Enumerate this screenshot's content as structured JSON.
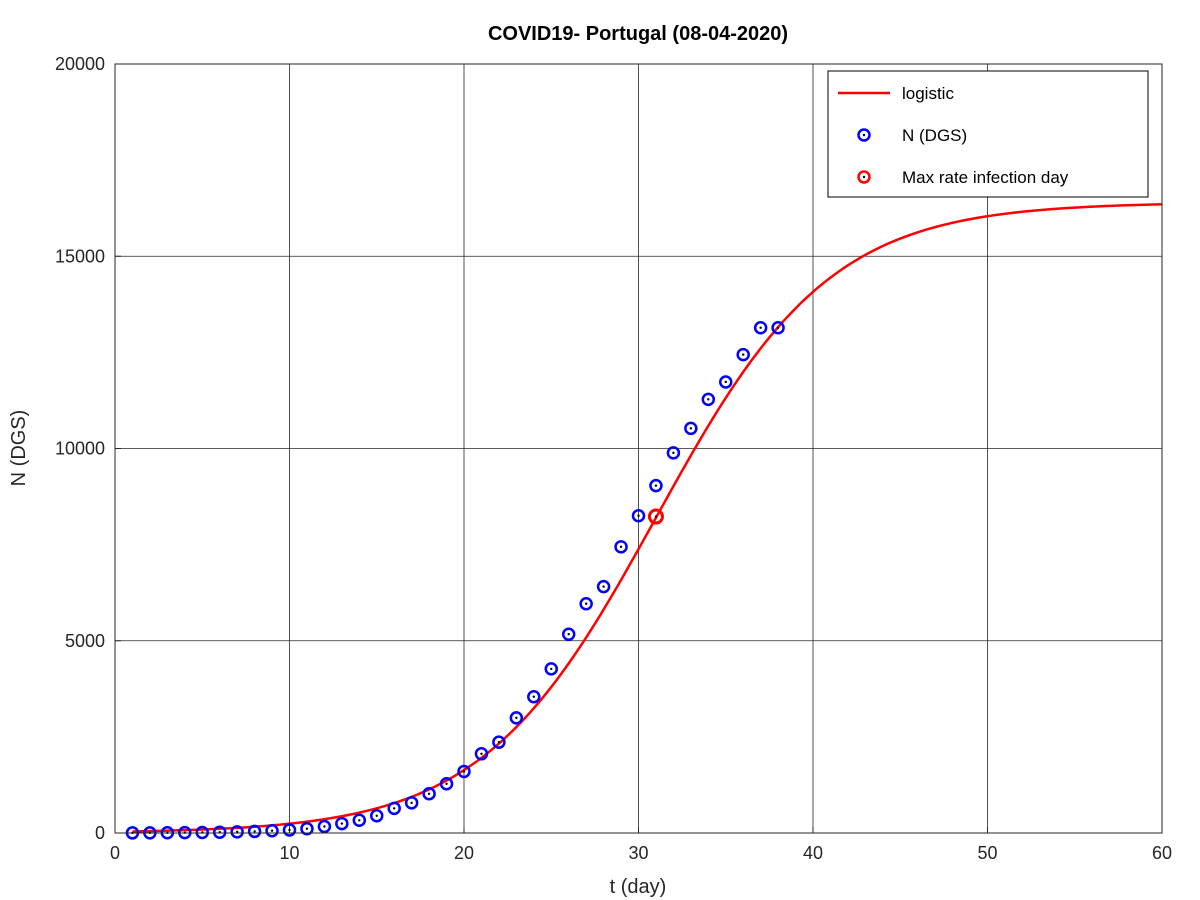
{
  "chart_data": {
    "type": "line",
    "title": "COVID19- Portugal (08-04-2020)",
    "xlabel": "t (day)",
    "ylabel": "N (DGS)",
    "xlim": [
      0,
      60
    ],
    "ylim": [
      0,
      20000
    ],
    "xticks": [
      0,
      10,
      20,
      30,
      40,
      50,
      60
    ],
    "yticks": [
      0,
      5000,
      10000,
      15000,
      20000
    ],
    "xtick_labels": [
      "0",
      "10",
      "20",
      "30",
      "40",
      "50",
      "60"
    ],
    "ytick_labels": [
      "0",
      "5000",
      "10000",
      "15000",
      "20000"
    ],
    "grid": true,
    "legend_position": "top-right",
    "series": [
      {
        "name": "logistic",
        "kind": "line",
        "color": "#ff0000",
        "model": {
          "K": 16400,
          "r": 0.2,
          "t0": 31,
          "t_start": 1,
          "t_end": 60
        }
      },
      {
        "name": "N (DGS)",
        "kind": "marker-circle",
        "color": "#0000ff",
        "x": [
          1,
          2,
          3,
          4,
          5,
          6,
          7,
          8,
          9,
          10,
          11,
          12,
          13,
          14,
          15,
          16,
          17,
          18,
          19,
          20,
          21,
          22,
          23,
          24,
          25,
          26,
          27,
          28,
          29,
          30,
          31,
          32,
          33,
          34,
          35,
          36,
          37,
          38
        ],
        "y": [
          2,
          4,
          6,
          9,
          13,
          21,
          30,
          41,
          59,
          78,
          112,
          169,
          245,
          331,
          448,
          642,
          785,
          1020,
          1280,
          1600,
          2060,
          2362,
          2995,
          3544,
          4268,
          5170,
          5962,
          6408,
          7443,
          8251,
          9034,
          9886,
          10524,
          11278,
          11730,
          12442,
          13141,
          13141
        ]
      },
      {
        "name": "Max rate infection day",
        "kind": "marker-circle",
        "color": "#ff0000",
        "x": [
          31
        ],
        "y": [
          8230
        ]
      }
    ]
  }
}
